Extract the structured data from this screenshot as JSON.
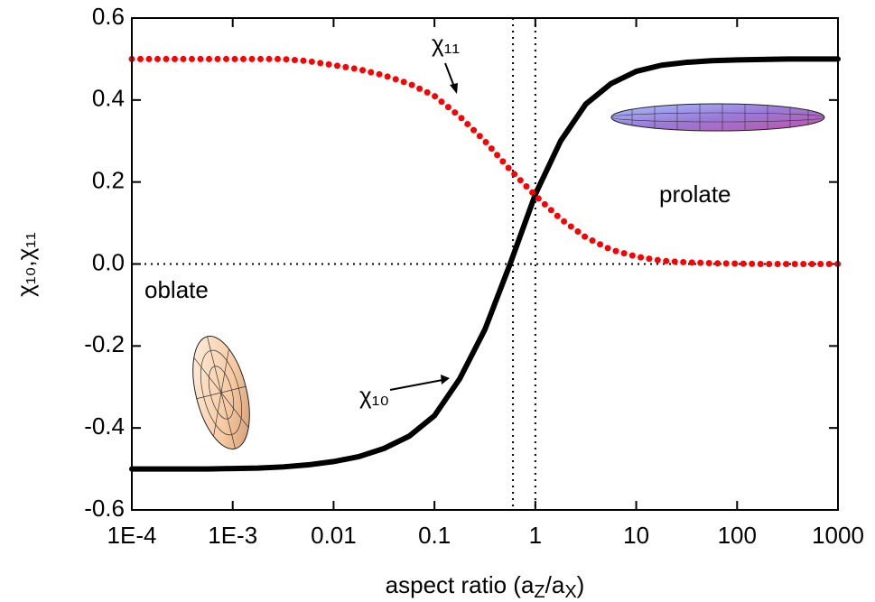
{
  "chart_data": {
    "type": "line",
    "x": [
      0.0001,
      0.000178,
      0.000316,
      0.000562,
      0.001,
      0.00178,
      0.00316,
      0.00562,
      0.01,
      0.0178,
      0.0316,
      0.0562,
      0.1,
      0.178,
      0.316,
      0.562,
      1,
      1.78,
      3.16,
      5.62,
      10,
      17.8,
      31.6,
      56.2,
      100,
      178,
      316,
      562,
      1000
    ],
    "series": [
      {
        "name": "χ₁₀",
        "color": "#000000",
        "style": "solid",
        "values": [
          -0.5,
          -0.5,
          -0.5,
          -0.5,
          -0.499,
          -0.498,
          -0.495,
          -0.49,
          -0.482,
          -0.47,
          -0.45,
          -0.42,
          -0.37,
          -0.28,
          -0.16,
          0.0,
          0.17,
          0.3,
          0.39,
          0.44,
          0.47,
          0.485,
          0.492,
          0.496,
          0.498,
          0.499,
          0.5,
          0.5,
          0.5
        ]
      },
      {
        "name": "χ₁₁",
        "color": "#ff0000",
        "style": "dotted",
        "values": [
          0.5,
          0.5,
          0.5,
          0.5,
          0.5,
          0.5,
          0.5,
          0.495,
          0.485,
          0.475,
          0.46,
          0.44,
          0.41,
          0.36,
          0.3,
          0.23,
          0.167,
          0.11,
          0.065,
          0.035,
          0.018,
          0.008,
          0.004,
          0.002,
          0.001,
          0,
          0,
          0,
          0
        ]
      }
    ],
    "xlabel": [
      "aspect ratio (a",
      "Z",
      "/a",
      "X",
      ")"
    ],
    "ylabel": "χ₁₀,χ₁₁",
    "xscale": "log",
    "xlim": [
      0.0001,
      1000
    ],
    "xticks": [
      {
        "value": 0.0001,
        "label": "1E-4"
      },
      {
        "value": 0.001,
        "label": "1E-3"
      },
      0.01,
      0.1,
      1,
      10,
      100,
      1000
    ],
    "ylim": [
      -0.6,
      0.6
    ],
    "yticks": [
      -0.6,
      -0.4,
      -0.2,
      {
        "value": 0,
        "label": "0.0"
      },
      0.2,
      0.4,
      0.6
    ],
    "vlines": [
      0.6,
      1
    ],
    "hlines": [
      0
    ],
    "annotations": [
      "prolate",
      "oblate"
    ]
  }
}
